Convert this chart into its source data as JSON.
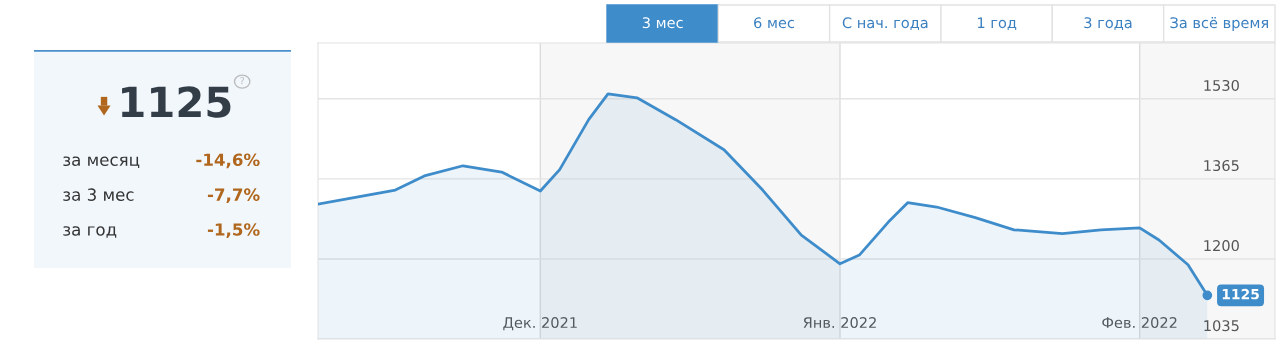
{
  "chart_data": [
    {
      "type": "other",
      "title": "1125",
      "annotations": [
        "?",
        "за месяц",
        "-14,6%",
        "за 3 мес",
        "-7,7%",
        "за год",
        "-1,5%"
      ]
    },
    {
      "type": "area",
      "annotations": [
        "3 мес",
        "6 мес",
        "С нач. года",
        "1 год",
        "3 года",
        "За всё время"
      ],
      "x": [
        "2021-11-08",
        "2021-11-11",
        "2021-11-16",
        "2021-11-19",
        "2021-11-23",
        "2021-11-27",
        "2021-12-01",
        "2021-12-03",
        "2021-12-06",
        "2021-12-08",
        "2021-12-11",
        "2021-12-15",
        "2021-12-20",
        "2021-12-24",
        "2021-12-28",
        "2022-01-01",
        "2022-01-03",
        "2022-01-06",
        "2022-01-08",
        "2022-01-11",
        "2022-01-15",
        "2022-01-19",
        "2022-01-24",
        "2022-01-28",
        "2022-02-01",
        "2022-02-03",
        "2022-02-06",
        "2022-02-08"
      ],
      "series": [
        {
          "color": "#3f8ccb",
          "values": [
            1313,
            1324,
            1342,
            1371,
            1392,
            1379,
            1340,
            1384,
            1487,
            1540,
            1532,
            1487,
            1425,
            1342,
            1249,
            1190,
            1208,
            1276,
            1316,
            1307,
            1285,
            1260,
            1252,
            1260,
            1264,
            1239,
            1188,
            1125
          ],
          "value_labels": [
            null,
            null,
            null,
            null,
            null,
            null,
            null,
            null,
            null,
            null,
            null,
            null,
            null,
            null,
            null,
            null,
            null,
            null,
            null,
            null,
            null,
            null,
            null,
            null,
            null,
            null,
            null,
            "1125"
          ]
        }
      ],
      "xlim": [
        "2021-11-08",
        "2022-02-15"
      ],
      "xticks": [
        {
          "value": "2021-12-01",
          "label": "Дек. 2021"
        },
        {
          "value": "2022-01-01",
          "label": "Янв. 2022"
        },
        {
          "value": "2022-02-01",
          "label": "Фев. 2022"
        }
      ],
      "ylim": [
        1035,
        1645
      ],
      "yticks": [
        1035,
        1200,
        1365,
        1530
      ],
      "bands": [
        {
          "axis": "x",
          "from": "2021-12-01",
          "to": "2022-01-01",
          "color": "#f7f7f7"
        },
        {
          "axis": "x",
          "from": "2022-02-01",
          "to": "2022-02-15",
          "color": "#f7f7f7"
        }
      ],
      "grid": true,
      "marker": "none",
      "line_style": "solid"
    }
  ]
}
